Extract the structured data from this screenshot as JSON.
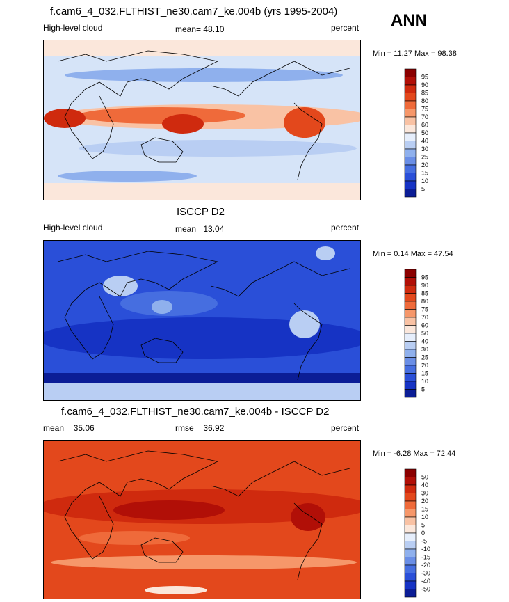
{
  "season": "ANN",
  "panels": [
    {
      "title": "f.cam6_4_032.FLTHIST_ne30.cam7_ke.004b (yrs 1995-2004)",
      "left": "High-level cloud",
      "center": "mean=  48.10",
      "right": "percent",
      "minmax": "Min =  11.27 Max =  98.38",
      "colorbar_labels": [
        "95",
        "90",
        "85",
        "80",
        "75",
        "70",
        "60",
        "50",
        "40",
        "30",
        "25",
        "20",
        "15",
        "10",
        "5"
      ],
      "base_color": "#cfe0f7"
    },
    {
      "title": "ISCCP D2",
      "left": "High-level cloud",
      "center": "mean=  13.04",
      "right": "percent",
      "minmax": "Min =  0.14 Max =  47.54",
      "colorbar_labels": [
        "95",
        "90",
        "85",
        "80",
        "75",
        "70",
        "60",
        "50",
        "40",
        "30",
        "25",
        "20",
        "15",
        "10",
        "5"
      ],
      "base_color": "#1f3fd0"
    },
    {
      "title": "f.cam6_4_032.FLTHIST_ne30.cam7_ke.004b - ISCCP D2",
      "left": "mean =  35.06",
      "center": "rmse =  36.92",
      "right": "percent",
      "minmax": "Min =  -6.28 Max =  72.44",
      "colorbar_labels": [
        "50",
        "40",
        "30",
        "20",
        "15",
        "10",
        "5",
        "0",
        "-5",
        "-10",
        "-15",
        "-20",
        "-30",
        "-40",
        "-50"
      ],
      "base_color": "#e84a1e"
    }
  ],
  "colorbar_colors": [
    "#8b0000",
    "#b10f07",
    "#cf2a0e",
    "#e3481c",
    "#ef6a3a",
    "#f6976a",
    "#f9c2a4",
    "#fbe7db",
    "#e6eefb",
    "#b9cef3",
    "#8fb0ed",
    "#6a8ee6",
    "#466ee0",
    "#2a4fd8",
    "#1633c4",
    "#0b1d96"
  ],
  "chart_data": [
    {
      "type": "heatmap",
      "title": "f.cam6_4_032.FLTHIST_ne30.cam7_ke.004b (yrs 1995-2004)",
      "variable": "High-level cloud",
      "units": "percent",
      "season": "ANN",
      "mean": 48.1,
      "min": 11.27,
      "max": 98.38,
      "contour_levels": [
        5,
        10,
        15,
        20,
        25,
        30,
        40,
        50,
        60,
        70,
        75,
        80,
        85,
        90,
        95
      ]
    },
    {
      "type": "heatmap",
      "title": "ISCCP D2",
      "variable": "High-level cloud",
      "units": "percent",
      "mean": 13.04,
      "min": 0.14,
      "max": 47.54,
      "contour_levels": [
        5,
        10,
        15,
        20,
        25,
        30,
        40,
        50,
        60,
        70,
        75,
        80,
        85,
        90,
        95
      ]
    },
    {
      "type": "heatmap",
      "title": "f.cam6_4_032.FLTHIST_ne30.cam7_ke.004b - ISCCP D2",
      "units": "percent",
      "mean": 35.06,
      "rmse": 36.92,
      "min": -6.28,
      "max": 72.44,
      "contour_levels": [
        -50,
        -40,
        -30,
        -20,
        -15,
        -10,
        -5,
        0,
        5,
        10,
        15,
        20,
        30,
        40,
        50
      ]
    }
  ]
}
